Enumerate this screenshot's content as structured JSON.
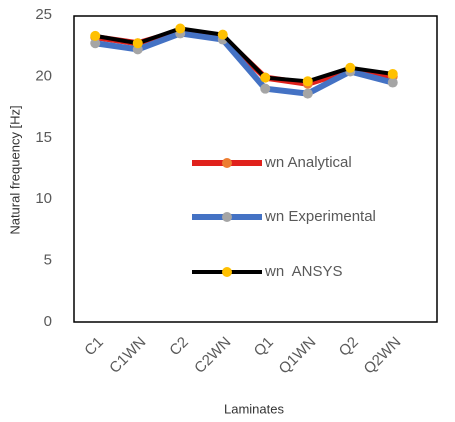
{
  "chart_data": {
    "type": "line",
    "x_label": "Laminates",
    "y_label": "Natural frequency [Hz]",
    "categories": [
      "C1",
      "C1WN",
      "C2",
      "C2WN",
      "Q1",
      "Q1WN",
      "Q2",
      "Q2WN"
    ],
    "series": [
      {
        "name": "wn Analytical",
        "color": "#e0211c",
        "marker_color": "#ed7d31",
        "values": [
          23.2,
          22.7,
          23.7,
          23.2,
          19.9,
          19.4,
          20.5,
          20.0
        ]
      },
      {
        "name": "wn Experimental",
        "color": "#4472c4",
        "marker_color": "#a5a5a5",
        "values": [
          22.7,
          22.2,
          23.5,
          23.0,
          19.0,
          18.6,
          20.4,
          19.5
        ]
      },
      {
        "name": "wn  ANSYS",
        "color": "#000000",
        "marker_color": "#ffc000",
        "values": [
          23.3,
          22.7,
          23.9,
          23.4,
          19.9,
          19.6,
          20.7,
          20.2
        ]
      }
    ],
    "ylim": [
      0,
      25
    ],
    "yticks": [
      0,
      5,
      10,
      15,
      20,
      25
    ],
    "grid": false
  }
}
